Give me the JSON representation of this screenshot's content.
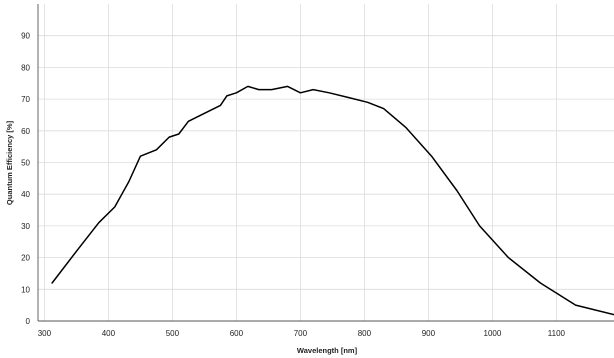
{
  "chart_data": {
    "type": "line",
    "title": "",
    "xlabel": "Wavelength [nm]",
    "ylabel": "Quantum Efficiency [%]",
    "xlim": [
      290,
      1190
    ],
    "ylim": [
      0,
      100
    ],
    "x_ticks": [
      300,
      400,
      500,
      600,
      700,
      800,
      900,
      1000,
      1100
    ],
    "y_ticks": [
      0,
      10,
      20,
      30,
      40,
      50,
      60,
      70,
      80,
      90
    ],
    "grid": true,
    "legend": "none",
    "series": [
      {
        "color": "#000000",
        "x": [
          312,
          350,
          385,
          410,
          432,
          450,
          475,
          495,
          510,
          525,
          545,
          575,
          585,
          600,
          618,
          635,
          655,
          680,
          700,
          720,
          745,
          775,
          805,
          830,
          865,
          905,
          945,
          980,
          1025,
          1075,
          1130,
          1190
        ],
        "y": [
          12,
          22,
          31,
          36,
          44,
          52,
          54,
          58,
          59,
          63,
          65,
          68,
          71,
          72,
          74,
          73,
          73,
          74,
          72,
          73,
          72,
          70.5,
          69,
          67,
          61,
          52,
          41,
          30,
          20,
          12,
          5,
          2
        ]
      }
    ]
  }
}
